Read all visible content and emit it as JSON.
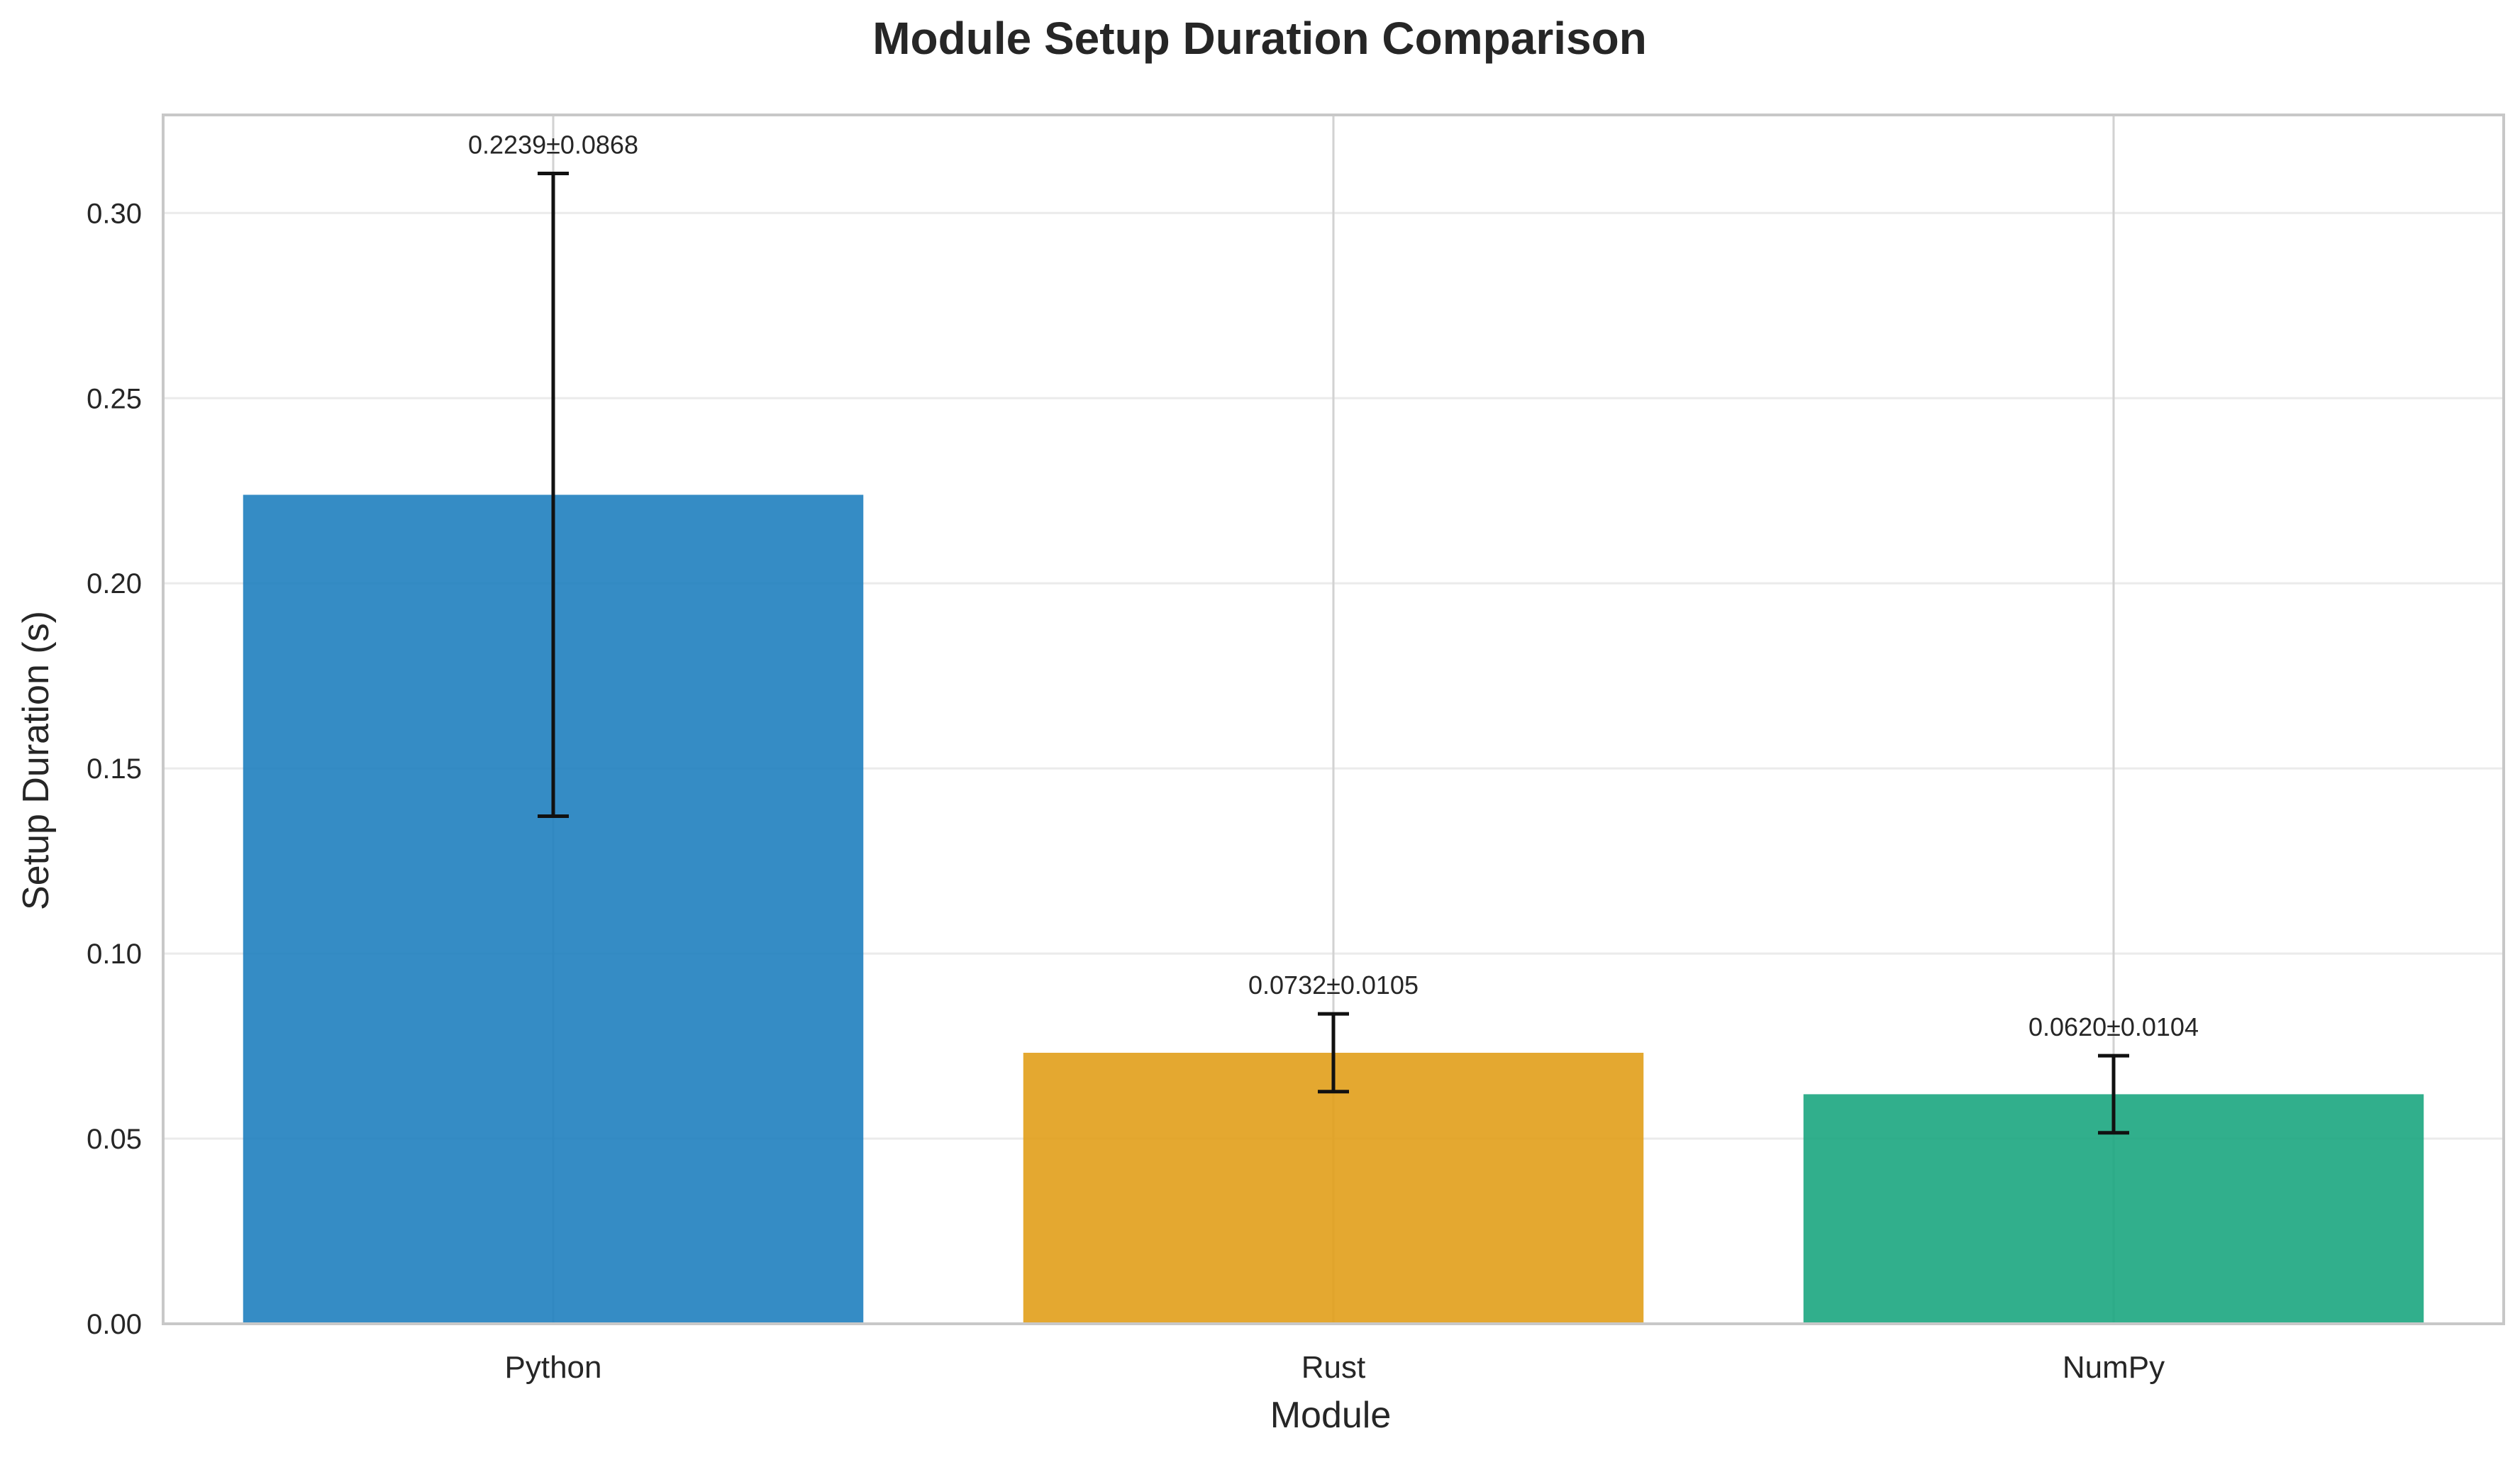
{
  "chart_data": {
    "type": "bar",
    "title": "Module Setup Duration Comparison",
    "xlabel": "Module",
    "ylabel": "Setup Duration (s)",
    "categories": [
      "Python",
      "Rust",
      "NumPy"
    ],
    "values": [
      0.2239,
      0.0732,
      0.062
    ],
    "errors": [
      0.0868,
      0.0105,
      0.0104
    ],
    "data_labels": [
      "0.2239±0.0868",
      "0.0732±0.0105",
      "0.0620±0.0104"
    ],
    "colors": [
      "#1f7fbf",
      "#e19e1a",
      "#1ba680"
    ],
    "ylim": [
      0,
      0.3265
    ],
    "yticks": [
      0.0,
      0.05,
      0.1,
      0.15,
      0.2,
      0.25,
      0.3
    ],
    "ytick_labels": [
      "0.00",
      "0.05",
      "0.10",
      "0.15",
      "0.20",
      "0.25",
      "0.30"
    ],
    "grid": true,
    "legend": "none"
  }
}
